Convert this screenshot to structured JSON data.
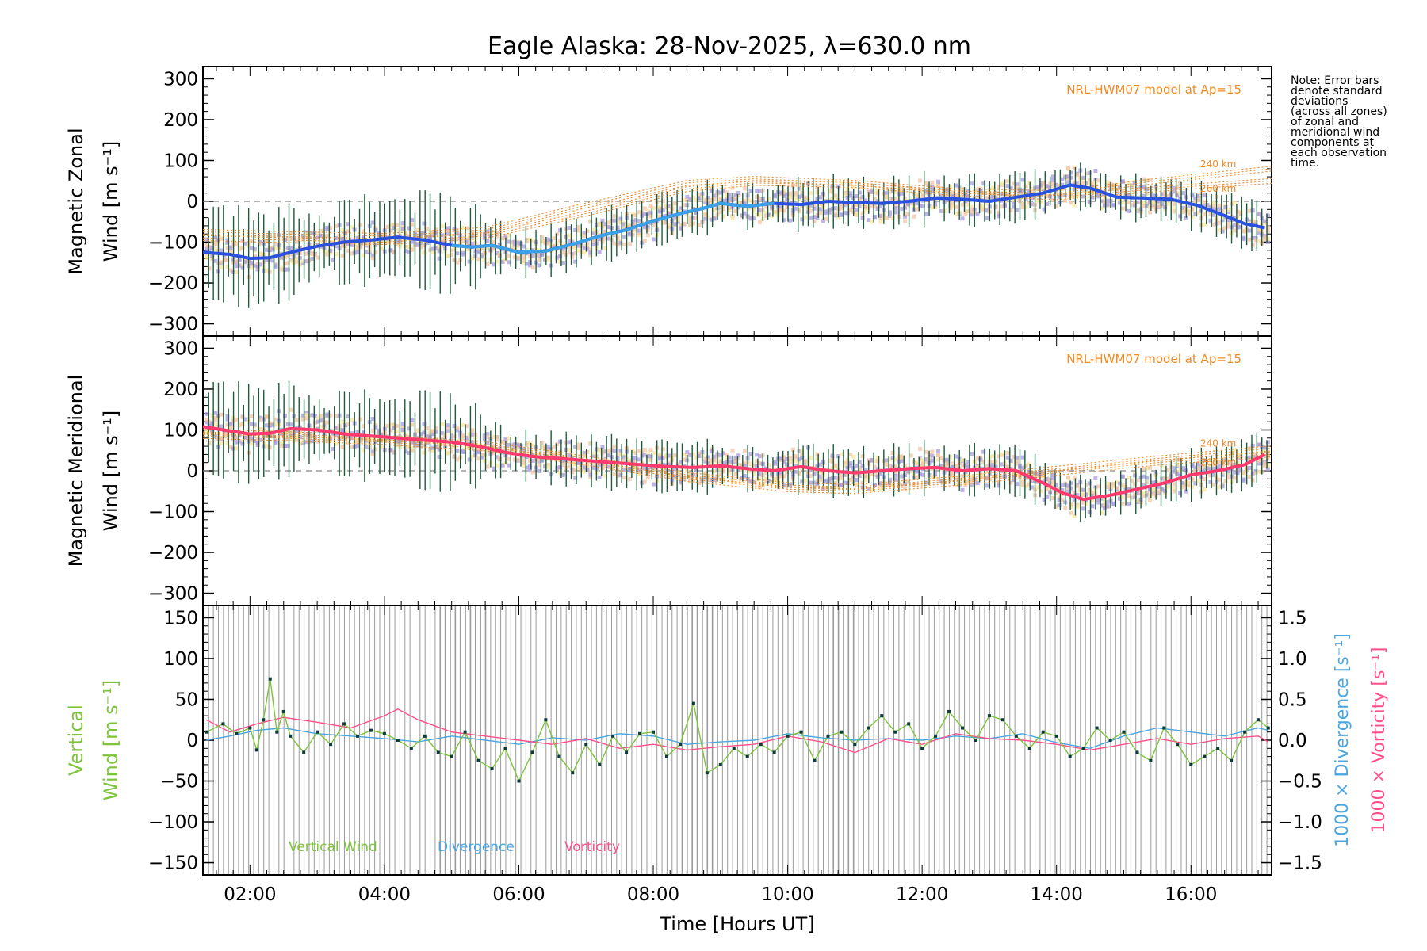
{
  "page": {
    "title": "Eagle Alaska: 28-Nov-2025, λ=630.0 nm"
  },
  "note": "Note: Error bars\ndenote standard\ndeviations\n(across all zones)\nof zonal and\nmeridional wind\ncomponents at\neach observation\ntime.",
  "colors": {
    "zonal_fit": "#2a52e0",
    "zonal_fit_light": "#3aa0e8",
    "meridional_fit": "#ff3a6e",
    "error_bar": "#1d5a3a",
    "model": "#f08a24",
    "scatter_purple": "#a89be0",
    "scatter_peach": "#f6c4a6",
    "scatter_yellow": "#fae6a0",
    "vertical_wind": "#7cc43a",
    "divergence": "#4aa6e0",
    "vorticity": "#ff4f8b",
    "gridline": "#9a9a9a"
  },
  "chart_data": [
    {
      "type": "line",
      "panel": "zonal",
      "ylabel_line1": "Magnetic Zonal",
      "ylabel_line2": "Wind [m s⁻¹]",
      "ylim": [
        -330,
        330
      ],
      "yticks": [
        -300,
        -200,
        -100,
        0,
        100,
        200,
        300
      ],
      "model_label": "NRL-HWM07 model at Ap=15",
      "model_alt_labels": [
        "240 km",
        "260 km"
      ],
      "x": [
        1.3,
        1.7,
        2.0,
        2.3,
        2.6,
        3.0,
        3.4,
        3.8,
        4.2,
        4.6,
        5.0,
        5.3,
        5.6,
        6.0,
        6.4,
        6.8,
        7.2,
        7.6,
        8.0,
        8.4,
        8.8,
        9.0,
        9.4,
        9.8,
        10.2,
        10.6,
        11.0,
        11.4,
        11.8,
        12.2,
        12.6,
        13.0,
        13.4,
        13.8,
        14.2,
        14.5,
        14.9,
        15.3,
        15.7,
        16.1,
        16.5,
        16.8,
        17.1
      ],
      "fit": [
        -125,
        -130,
        -140,
        -138,
        -125,
        -110,
        -100,
        -95,
        -88,
        -95,
        -108,
        -112,
        -108,
        -125,
        -122,
        -105,
        -85,
        -70,
        -48,
        -30,
        -15,
        -5,
        -12,
        -5,
        -8,
        0,
        -3,
        -5,
        0,
        8,
        5,
        0,
        10,
        20,
        40,
        32,
        10,
        8,
        5,
        -10,
        -35,
        -55,
        -65
      ],
      "model_x": [
        1.3,
        2.5,
        4.0,
        5.5,
        7.0,
        8.5,
        9.5,
        11.0,
        12.5,
        14.0,
        15.5,
        17.2
      ],
      "model_240": [
        -75,
        -80,
        -85,
        -70,
        -10,
        45,
        55,
        45,
        25,
        20,
        50,
        80
      ],
      "model_260": [
        -90,
        -95,
        -100,
        -85,
        -30,
        30,
        45,
        40,
        20,
        10,
        30,
        50
      ]
    },
    {
      "type": "line",
      "panel": "meridional",
      "ylabel_line1": "Magnetic Meridional",
      "ylabel_line2": "Wind [m s⁻¹]",
      "ylim": [
        -330,
        330
      ],
      "yticks": [
        -300,
        -200,
        -100,
        0,
        100,
        200,
        300
      ],
      "model_label": "NRL-HWM07 model at Ap=15",
      "model_alt_labels": [
        "240 km",
        "260 km"
      ],
      "x": [
        1.3,
        1.6,
        2.0,
        2.3,
        2.6,
        3.0,
        3.4,
        3.8,
        4.2,
        4.6,
        5.0,
        5.4,
        5.8,
        6.2,
        6.6,
        7.0,
        7.4,
        7.8,
        8.2,
        8.6,
        9.0,
        9.4,
        9.8,
        10.2,
        10.6,
        11.0,
        11.4,
        11.8,
        12.2,
        12.6,
        13.0,
        13.4,
        13.8,
        14.1,
        14.4,
        14.8,
        15.2,
        15.6,
        16.0,
        16.4,
        16.8,
        17.1
      ],
      "fit": [
        108,
        100,
        90,
        92,
        103,
        100,
        90,
        85,
        80,
        75,
        70,
        60,
        45,
        35,
        30,
        25,
        20,
        15,
        10,
        8,
        12,
        5,
        0,
        10,
        0,
        -5,
        0,
        5,
        8,
        0,
        5,
        0,
        -30,
        -55,
        -70,
        -60,
        -45,
        -30,
        -10,
        0,
        15,
        40
      ],
      "model_x": [
        1.3,
        2.5,
        4.0,
        5.5,
        7.0,
        8.5,
        10.0,
        11.0,
        12.5,
        14.0,
        15.5,
        17.2
      ],
      "model_240": [
        95,
        90,
        80,
        65,
        30,
        -10,
        -35,
        -40,
        -20,
        5,
        30,
        55
      ],
      "model_260": [
        85,
        80,
        70,
        55,
        20,
        -20,
        -45,
        -50,
        -30,
        -5,
        20,
        40
      ]
    },
    {
      "type": "line",
      "panel": "vertical",
      "ylabel_line1": "Vertical",
      "ylabel_line2": "Wind [m s⁻¹]",
      "ylabel_right_div": "1000 × Divergence [s⁻¹]",
      "ylabel_right_vort": "1000 × Vorticity [s⁻¹]",
      "ylim": [
        -165,
        165
      ],
      "yticks": [
        -150,
        -100,
        -50,
        0,
        50,
        100,
        150
      ],
      "y2lim": [
        -1.65,
        1.65
      ],
      "y2ticks": [
        -1.5,
        -1.0,
        -0.5,
        0.0,
        0.5,
        1.0,
        1.5
      ],
      "y2ticklabels": [
        "−1.5",
        "−1.0",
        "−0.5",
        "0.0",
        "0.5",
        "1.0",
        "1.5"
      ],
      "xlabel": "Time [Hours UT]",
      "xlim": [
        1.3,
        17.2
      ],
      "xticks": [
        2,
        4,
        6,
        8,
        10,
        12,
        14,
        16
      ],
      "xticklabels": [
        "02:00",
        "04:00",
        "06:00",
        "08:00",
        "10:00",
        "12:00",
        "14:00",
        "16:00"
      ],
      "legend": [
        "Vertical Wind",
        "Divergence",
        "Vorticity"
      ],
      "vertical_wind": {
        "x": [
          1.35,
          1.6,
          1.8,
          2.0,
          2.1,
          2.2,
          2.3,
          2.4,
          2.5,
          2.6,
          2.8,
          3.0,
          3.2,
          3.4,
          3.6,
          3.8,
          4.0,
          4.2,
          4.4,
          4.6,
          4.8,
          5.0,
          5.2,
          5.4,
          5.6,
          5.8,
          6.0,
          6.2,
          6.4,
          6.6,
          6.8,
          7.0,
          7.2,
          7.4,
          7.6,
          7.8,
          8.0,
          8.2,
          8.4,
          8.6,
          8.8,
          9.0,
          9.2,
          9.4,
          9.6,
          9.8,
          10.0,
          10.2,
          10.4,
          10.6,
          10.8,
          11.0,
          11.2,
          11.4,
          11.6,
          11.8,
          12.0,
          12.2,
          12.4,
          12.6,
          12.8,
          13.0,
          13.2,
          13.4,
          13.6,
          13.8,
          14.0,
          14.2,
          14.4,
          14.6,
          14.8,
          15.0,
          15.2,
          15.4,
          15.6,
          15.8,
          16.0,
          16.2,
          16.4,
          16.6,
          16.8,
          17.0,
          17.15
        ],
        "y": [
          10,
          20,
          8,
          15,
          -12,
          25,
          75,
          10,
          35,
          5,
          -15,
          10,
          -5,
          20,
          5,
          12,
          8,
          0,
          -10,
          5,
          -15,
          -20,
          10,
          -25,
          -35,
          -10,
          -50,
          -15,
          25,
          -20,
          -40,
          -5,
          -30,
          5,
          -15,
          8,
          10,
          -20,
          -5,
          45,
          -40,
          -30,
          -10,
          -20,
          -5,
          -15,
          5,
          10,
          -25,
          5,
          10,
          -5,
          15,
          30,
          10,
          20,
          -10,
          5,
          35,
          15,
          0,
          30,
          25,
          5,
          -10,
          10,
          5,
          -20,
          -10,
          15,
          0,
          10,
          -15,
          -25,
          15,
          -5,
          -30,
          -20,
          -10,
          -25,
          10,
          25,
          15
        ]
      },
      "divergence": {
        "x": [
          1.35,
          1.7,
          2.1,
          2.5,
          3.0,
          3.5,
          4.0,
          4.5,
          5.0,
          5.5,
          6.0,
          6.5,
          7.0,
          7.5,
          8.0,
          8.5,
          9.0,
          9.5,
          10.0,
          10.5,
          11.0,
          11.5,
          12.0,
          12.5,
          13.0,
          13.5,
          14.0,
          14.5,
          15.0,
          15.5,
          16.0,
          16.5,
          17.0,
          17.15
        ],
        "y": [
          0.0,
          0.05,
          0.12,
          0.15,
          0.08,
          0.05,
          0.02,
          -0.02,
          0.05,
          0.0,
          -0.05,
          0.03,
          0.0,
          0.08,
          0.05,
          -0.05,
          -0.02,
          0.0,
          0.08,
          0.03,
          0.0,
          0.02,
          0.0,
          0.05,
          0.02,
          0.08,
          -0.03,
          -0.1,
          0.05,
          0.15,
          0.1,
          0.05,
          0.15,
          0.12
        ]
      },
      "vorticity": {
        "x": [
          1.35,
          1.7,
          2.1,
          2.5,
          3.0,
          3.5,
          4.0,
          4.2,
          4.5,
          5.0,
          5.5,
          6.0,
          6.5,
          7.0,
          7.5,
          8.0,
          8.5,
          9.0,
          9.5,
          10.0,
          10.5,
          11.0,
          11.5,
          12.0,
          12.5,
          13.0,
          13.5,
          14.0,
          14.5,
          15.0,
          15.5,
          16.0,
          16.5,
          17.0,
          17.15
        ],
        "y": [
          0.25,
          0.1,
          0.2,
          0.28,
          0.22,
          0.15,
          0.3,
          0.38,
          0.25,
          0.1,
          0.05,
          0.0,
          -0.05,
          0.02,
          -0.1,
          -0.05,
          -0.12,
          -0.08,
          -0.05,
          0.05,
          -0.02,
          -0.15,
          0.02,
          -0.05,
          0.08,
          0.02,
          0.0,
          -0.05,
          -0.12,
          -0.05,
          0.02,
          -0.05,
          0.02,
          0.05,
          -0.02
        ]
      }
    }
  ]
}
